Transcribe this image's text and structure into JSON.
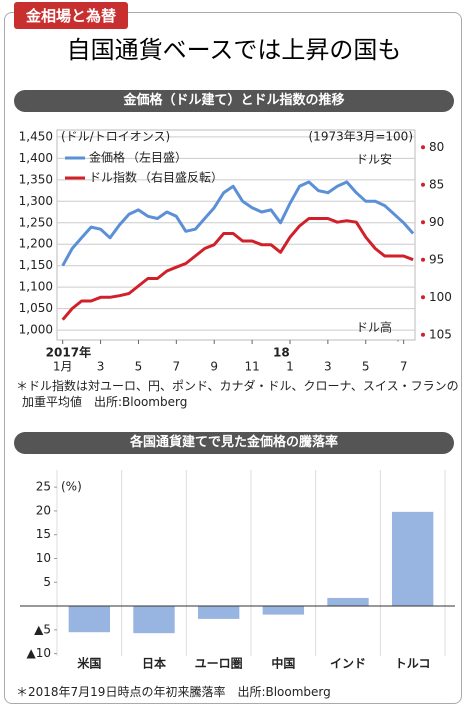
{
  "header": {
    "tag": "金相場と為替",
    "title": "自国通貨ベースでは上昇の国も"
  },
  "chart_data": [
    {
      "type": "line",
      "title": "金価格（ドル建て）とドル指数の推移",
      "y_unit": "(ドル/トロイオンス)",
      "y2_unit": "(1973年3月=100)",
      "x": [
        0,
        0.5,
        1,
        1.5,
        2,
        2.5,
        3,
        3.5,
        4,
        4.5,
        5,
        5.5,
        6,
        6.5,
        7,
        7.5,
        8,
        8.5,
        9,
        9.5,
        10,
        10.5,
        11,
        11.5,
        12,
        12.5,
        13,
        13.5,
        14,
        14.5,
        15,
        15.5,
        16,
        16.5,
        17,
        17.5,
        18,
        18.5
      ],
      "xlim": [
        -0.3,
        18.6
      ],
      "xticks": [
        {
          "value": 0,
          "label": "1月"
        },
        {
          "value": 2,
          "label": "3"
        },
        {
          "value": 4,
          "label": "5"
        },
        {
          "value": 6,
          "label": "7"
        },
        {
          "value": 8,
          "label": "9"
        },
        {
          "value": 10,
          "label": "11"
        },
        {
          "value": 12,
          "label": "1"
        },
        {
          "value": 14,
          "label": "3"
        },
        {
          "value": 16,
          "label": "5"
        },
        {
          "value": 18,
          "label": "7"
        }
      ],
      "x_year_labels": [
        {
          "value": 0,
          "label": "2017年"
        },
        {
          "value": 12,
          "label": "18"
        }
      ],
      "ylim": [
        977,
        1466
      ],
      "yticks": [
        {
          "value": 1000,
          "label": "1,000"
        },
        {
          "value": 1050,
          "label": "1,050"
        },
        {
          "value": 1100,
          "label": "1,100"
        },
        {
          "value": 1150,
          "label": "1,150"
        },
        {
          "value": 1200,
          "label": "1,200"
        },
        {
          "value": 1250,
          "label": "1,250"
        },
        {
          "value": 1300,
          "label": "1,300"
        },
        {
          "value": 1350,
          "label": "1,350"
        },
        {
          "value": 1400,
          "label": "1,400"
        },
        {
          "value": 1450,
          "label": "1,450"
        }
      ],
      "y2lim": [
        77.7,
        105.7
      ],
      "y2_inverted": true,
      "y2ticks": [
        80,
        85,
        90,
        95,
        100,
        105
      ],
      "y2_color": "#d0202a",
      "grid": true,
      "series": [
        {
          "name": "金価格",
          "note": "（左目盛）",
          "color": "#5b8fd6",
          "values": [
            1150,
            1190,
            1215,
            1240,
            1235,
            1215,
            1245,
            1270,
            1280,
            1265,
            1260,
            1275,
            1265,
            1230,
            1235,
            1260,
            1285,
            1320,
            1335,
            1300,
            1285,
            1275,
            1280,
            1250,
            1295,
            1335,
            1345,
            1325,
            1320,
            1335,
            1345,
            1320,
            1300,
            1300,
            1290,
            1270,
            1250,
            1225
          ]
        },
        {
          "name": "ドル指数",
          "note": "（右目盛反転）",
          "color": "#d0202a",
          "axis": "y2",
          "values": [
            103,
            101.5,
            100.5,
            100.5,
            100,
            100,
            99.8,
            99.5,
            98.5,
            97.5,
            97.5,
            96.5,
            96,
            95.5,
            94.5,
            93.5,
            93,
            91.5,
            91.5,
            92.5,
            92.5,
            93,
            93,
            94,
            92,
            90.5,
            89.5,
            89.5,
            89.5,
            90,
            89.8,
            90,
            92,
            93.5,
            94.5,
            94.5,
            94.5,
            95
          ]
        }
      ],
      "annotations": [
        {
          "text": "ドル安"
        },
        {
          "text": "ドル高"
        }
      ],
      "note": "＊ドル指数は対ユーロ、円、ポンド、カナダ・ドル、クローナ、スイス・フランの加重平均値　出所:Bloomberg"
    },
    {
      "type": "bar",
      "title": "各国通貨建てで見た金価格の騰落率",
      "y_unit": "(%)",
      "categories": [
        "米国",
        "日本",
        "ユーロ圏",
        "中国",
        "インド",
        "トルコ"
      ],
      "values": [
        -5.5,
        -5.7,
        -2.7,
        -1.8,
        1.7,
        19.8
      ],
      "color": "#98b4e0",
      "ylim": [
        -10.5,
        28.6
      ],
      "yticks": [
        25,
        20,
        15,
        10,
        5,
        {
          "value": -5,
          "label": "▲5"
        },
        {
          "value": -10,
          "label": "▲10"
        }
      ],
      "note": "＊2018年7月19日時点の年初来騰落率　出所:Bloomberg"
    }
  ]
}
